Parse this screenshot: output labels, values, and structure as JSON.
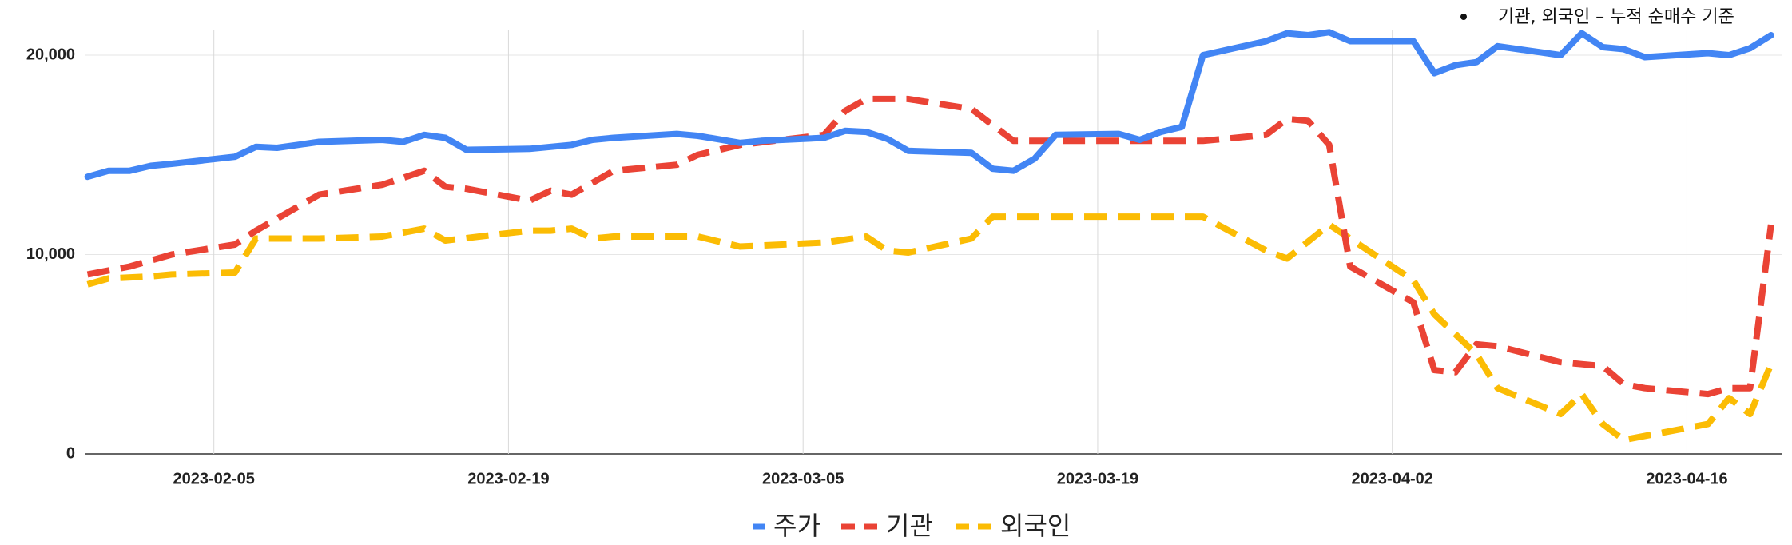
{
  "chart_data": {
    "type": "line",
    "annotation": "기관, 외국인 – 누적 순매수 기준",
    "x_ticks": [
      "2023-02-05",
      "2023-02-19",
      "2023-03-05",
      "2023-03-19",
      "2023-04-02",
      "2023-04-16"
    ],
    "y_ticks": [
      0,
      10000,
      20000
    ],
    "y_tick_labels": [
      "0",
      "10,000",
      "20,000"
    ],
    "x_range": [
      "2023-01-30",
      "2023-04-20"
    ],
    "ylim": [
      0,
      20000
    ],
    "grid": true,
    "legend_position": "bottom",
    "series": [
      {
        "name": "주가",
        "color": "#4285F4",
        "style": "solid",
        "points": [
          [
            "2023-01-30",
            13900
          ],
          [
            "2023-01-31",
            14200
          ],
          [
            "2023-02-01",
            14200
          ],
          [
            "2023-02-02",
            14450
          ],
          [
            "2023-02-03",
            14550
          ],
          [
            "2023-02-06",
            14900
          ],
          [
            "2023-02-07",
            15400
          ],
          [
            "2023-02-08",
            15350
          ],
          [
            "2023-02-09",
            15500
          ],
          [
            "2023-02-10",
            15650
          ],
          [
            "2023-02-13",
            15750
          ],
          [
            "2023-02-14",
            15650
          ],
          [
            "2023-02-15",
            16000
          ],
          [
            "2023-02-16",
            15850
          ],
          [
            "2023-02-17",
            15250
          ],
          [
            "2023-02-20",
            15300
          ],
          [
            "2023-02-21",
            15400
          ],
          [
            "2023-02-22",
            15500
          ],
          [
            "2023-02-23",
            15750
          ],
          [
            "2023-02-24",
            15850
          ],
          [
            "2023-02-27",
            16050
          ],
          [
            "2023-02-28",
            15950
          ],
          [
            "2023-03-02",
            15600
          ],
          [
            "2023-03-03",
            15700
          ],
          [
            "2023-03-06",
            15850
          ],
          [
            "2023-03-07",
            16200
          ],
          [
            "2023-03-08",
            16150
          ],
          [
            "2023-03-09",
            15800
          ],
          [
            "2023-03-10",
            15200
          ],
          [
            "2023-03-13",
            15100
          ],
          [
            "2023-03-14",
            14300
          ],
          [
            "2023-03-15",
            14200
          ],
          [
            "2023-03-16",
            14800
          ],
          [
            "2023-03-17",
            16000
          ],
          [
            "2023-03-20",
            16050
          ],
          [
            "2023-03-21",
            15750
          ],
          [
            "2023-03-22",
            16150
          ],
          [
            "2023-03-23",
            16400
          ],
          [
            "2023-03-24",
            20000
          ],
          [
            "2023-03-27",
            20700
          ],
          [
            "2023-03-28",
            21100
          ],
          [
            "2023-03-29",
            21000
          ],
          [
            "2023-03-30",
            21150
          ],
          [
            "2023-03-31",
            20700
          ],
          [
            "2023-04-03",
            20700
          ],
          [
            "2023-04-04",
            19100
          ],
          [
            "2023-04-05",
            19500
          ],
          [
            "2023-04-06",
            19650
          ],
          [
            "2023-04-07",
            20450
          ],
          [
            "2023-04-10",
            20000
          ],
          [
            "2023-04-11",
            21100
          ],
          [
            "2023-04-12",
            20400
          ],
          [
            "2023-04-13",
            20300
          ],
          [
            "2023-04-14",
            19900
          ],
          [
            "2023-04-17",
            20100
          ],
          [
            "2023-04-18",
            20000
          ],
          [
            "2023-04-19",
            20350
          ],
          [
            "2023-04-20",
            21000
          ]
        ]
      },
      {
        "name": "기관",
        "color": "#EA4335",
        "style": "dashed",
        "points": [
          [
            "2023-01-30",
            9000
          ],
          [
            "2023-02-01",
            9400
          ],
          [
            "2023-02-03",
            10000
          ],
          [
            "2023-02-06",
            10500
          ],
          [
            "2023-02-07",
            11200
          ],
          [
            "2023-02-08",
            11800
          ],
          [
            "2023-02-10",
            13000
          ],
          [
            "2023-02-13",
            13500
          ],
          [
            "2023-02-15",
            14200
          ],
          [
            "2023-02-16",
            13400
          ],
          [
            "2023-02-17",
            13300
          ],
          [
            "2023-02-20",
            12700
          ],
          [
            "2023-02-21",
            13200
          ],
          [
            "2023-02-22",
            13000
          ],
          [
            "2023-02-24",
            14200
          ],
          [
            "2023-02-27",
            14500
          ],
          [
            "2023-02-28",
            15000
          ],
          [
            "2023-03-02",
            15500
          ],
          [
            "2023-03-06",
            16000
          ],
          [
            "2023-03-07",
            17200
          ],
          [
            "2023-03-08",
            17800
          ],
          [
            "2023-03-10",
            17800
          ],
          [
            "2023-03-13",
            17300
          ],
          [
            "2023-03-15",
            15700
          ],
          [
            "2023-03-17",
            15700
          ],
          [
            "2023-03-20",
            15700
          ],
          [
            "2023-03-24",
            15700
          ],
          [
            "2023-03-27",
            16000
          ],
          [
            "2023-03-28",
            16800
          ],
          [
            "2023-03-29",
            16700
          ],
          [
            "2023-03-30",
            15500
          ],
          [
            "2023-03-31",
            9400
          ],
          [
            "2023-04-03",
            7600
          ],
          [
            "2023-04-04",
            4200
          ],
          [
            "2023-04-05",
            4100
          ],
          [
            "2023-04-06",
            5500
          ],
          [
            "2023-04-07",
            5400
          ],
          [
            "2023-04-10",
            4600
          ],
          [
            "2023-04-11",
            4500
          ],
          [
            "2023-04-12",
            4400
          ],
          [
            "2023-04-13",
            3500
          ],
          [
            "2023-04-14",
            3300
          ],
          [
            "2023-04-17",
            3000
          ],
          [
            "2023-04-18",
            3300
          ],
          [
            "2023-04-19",
            3300
          ],
          [
            "2023-04-20",
            11500
          ]
        ]
      },
      {
        "name": "외국인",
        "color": "#FBBC04",
        "style": "dashed",
        "points": [
          [
            "2023-01-30",
            8500
          ],
          [
            "2023-01-31",
            8800
          ],
          [
            "2023-02-02",
            8900
          ],
          [
            "2023-02-03",
            9000
          ],
          [
            "2023-02-06",
            9100
          ],
          [
            "2023-02-07",
            10800
          ],
          [
            "2023-02-10",
            10800
          ],
          [
            "2023-02-13",
            10900
          ],
          [
            "2023-02-15",
            11300
          ],
          [
            "2023-02-16",
            10700
          ],
          [
            "2023-02-20",
            11200
          ],
          [
            "2023-02-21",
            11200
          ],
          [
            "2023-02-22",
            11300
          ],
          [
            "2023-02-23",
            10800
          ],
          [
            "2023-02-24",
            10900
          ],
          [
            "2023-02-28",
            10900
          ],
          [
            "2023-03-02",
            10400
          ],
          [
            "2023-03-06",
            10600
          ],
          [
            "2023-03-08",
            10900
          ],
          [
            "2023-03-09",
            10200
          ],
          [
            "2023-03-10",
            10100
          ],
          [
            "2023-03-13",
            10800
          ],
          [
            "2023-03-14",
            11900
          ],
          [
            "2023-03-16",
            11900
          ],
          [
            "2023-03-20",
            11900
          ],
          [
            "2023-03-24",
            11900
          ],
          [
            "2023-03-27",
            10200
          ],
          [
            "2023-03-28",
            9800
          ],
          [
            "2023-03-30",
            11500
          ],
          [
            "2023-04-03",
            8700
          ],
          [
            "2023-04-04",
            7000
          ],
          [
            "2023-04-06",
            5000
          ],
          [
            "2023-04-07",
            3300
          ],
          [
            "2023-04-10",
            2000
          ],
          [
            "2023-04-11",
            3000
          ],
          [
            "2023-04-12",
            1500
          ],
          [
            "2023-04-13",
            700
          ],
          [
            "2023-04-17",
            1500
          ],
          [
            "2023-04-18",
            2800
          ],
          [
            "2023-04-19",
            2000
          ],
          [
            "2023-04-20",
            4500
          ]
        ]
      }
    ]
  }
}
